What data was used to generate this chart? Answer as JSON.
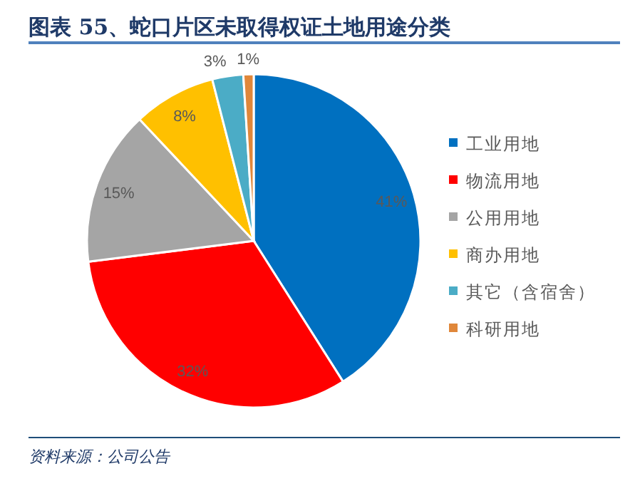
{
  "chart_data": {
    "type": "pie",
    "title": "图表 55、蛇口片区未取得权证土地用途分类",
    "categories": [
      "工业用地",
      "物流用地",
      "公用用地",
      "商办用地",
      "其它（含宿舍）",
      "科研用地"
    ],
    "values": [
      41,
      32,
      15,
      8,
      3,
      1
    ],
    "colors": [
      "#0070c0",
      "#ff0000",
      "#a5a5a5",
      "#ffc000",
      "#4bacc6",
      "#e0873a"
    ],
    "value_labels": [
      "41%",
      "32%",
      "15%",
      "8%",
      "3%",
      "1%"
    ],
    "legend": "right",
    "annotations": [
      "资料来源：公司公告"
    ]
  }
}
